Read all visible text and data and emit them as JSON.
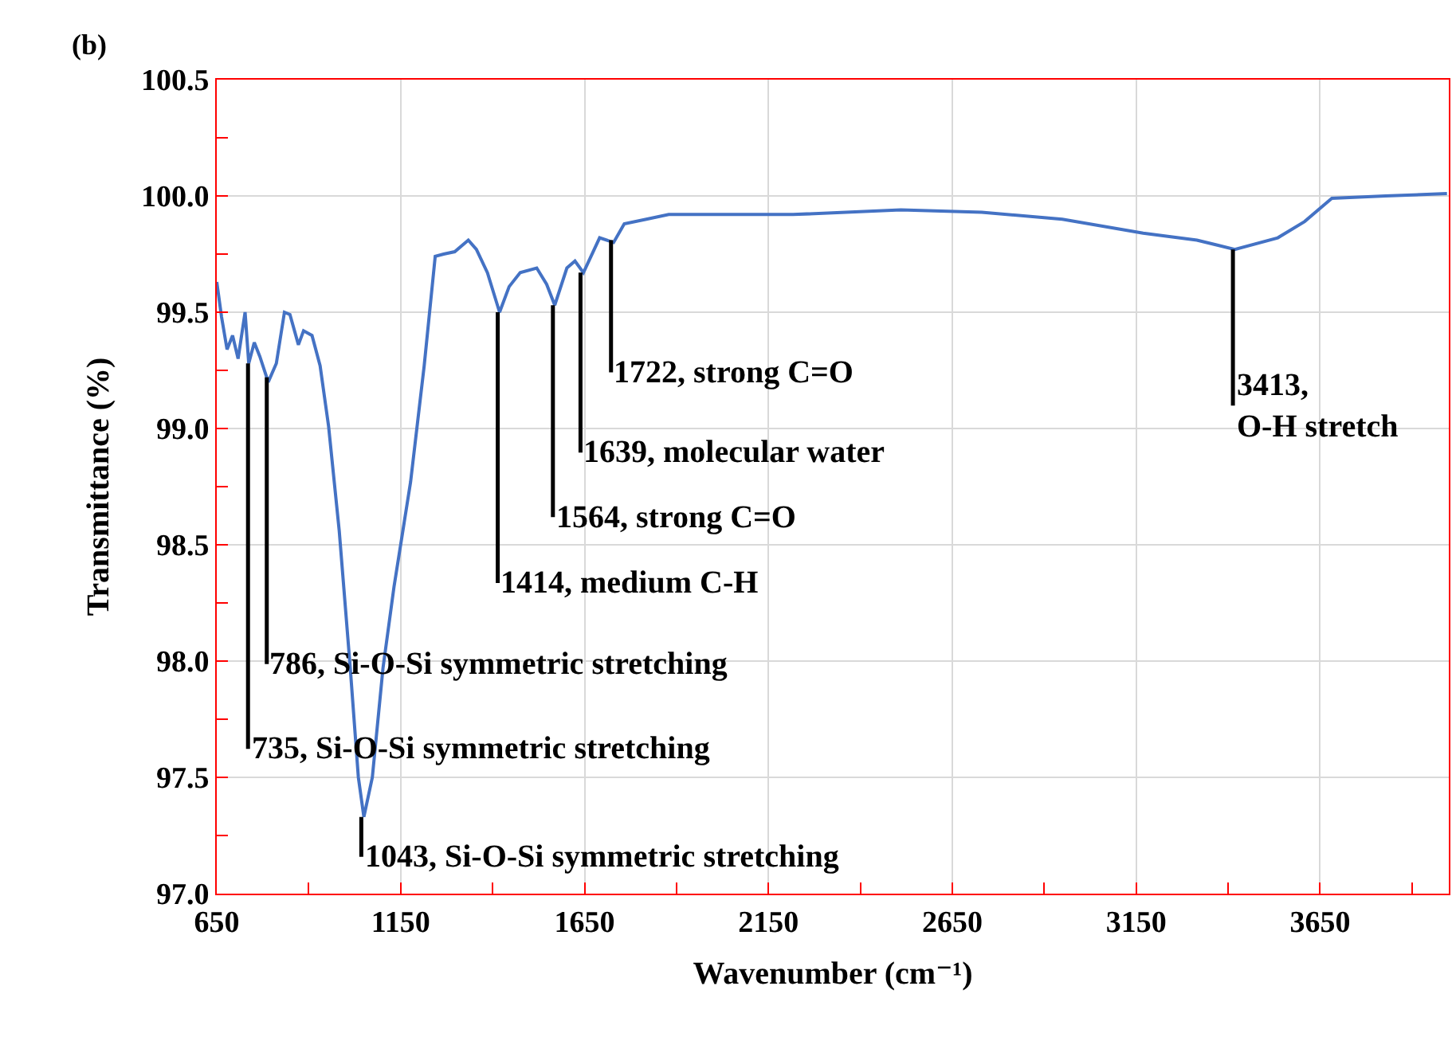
{
  "chart_data": {
    "type": "line",
    "xlabel": "Wavenumber (cm⁻¹)",
    "ylabel": "Transmittance (%)",
    "xlim": [
      650,
      4000
    ],
    "ylim": [
      97.0,
      100.5
    ],
    "xticks": [
      650,
      {
        "value": 900,
        "label": null
      },
      1150,
      {
        "value": 1400,
        "label": null
      },
      1650,
      {
        "value": 1900,
        "label": null
      },
      2150,
      {
        "value": 2400,
        "label": null
      },
      2650,
      {
        "value": 2900,
        "label": null
      },
      3150,
      {
        "value": 3400,
        "label": null
      },
      3650,
      {
        "value": 3900,
        "label": null
      }
    ],
    "yticks": [
      {
        "value": 97.0,
        "label": "97.0"
      },
      {
        "value": 97.25,
        "label": null
      },
      {
        "value": 97.5,
        "label": "97.5"
      },
      {
        "value": 97.75,
        "label": null
      },
      {
        "value": 98.0,
        "label": "98.0"
      },
      {
        "value": 98.25,
        "label": null
      },
      {
        "value": 98.5,
        "label": "98.5"
      },
      {
        "value": 98.75,
        "label": null
      },
      {
        "value": 99.0,
        "label": "99.0"
      },
      {
        "value": 99.25,
        "label": null
      },
      {
        "value": 99.5,
        "label": "99.5"
      },
      {
        "value": 99.75,
        "label": null
      },
      {
        "value": 100.0,
        "label": "100.0"
      },
      {
        "value": 100.25,
        "label": null
      },
      {
        "value": 100.5,
        "label": "100.5"
      }
    ],
    "grid": true,
    "marker": "none",
    "line_style": "solid",
    "series": [
      {
        "color": "#4472c4",
        "x": [
          650,
          663,
          678,
          693,
          708,
          727,
          737,
          752,
          767,
          790,
          812,
          834,
          849,
          872,
          886,
          909,
          931,
          954,
          983,
          1013,
          1035,
          1050,
          1073,
          1102,
          1132,
          1177,
          1214,
          1244,
          1267,
          1297,
          1334,
          1356,
          1386,
          1419,
          1445,
          1475,
          1520,
          1547,
          1569,
          1602,
          1624,
          1647,
          1691,
          1729,
          1758,
          1818,
          1879,
          1925,
          2217,
          2510,
          2730,
          2949,
          3169,
          3315,
          3418,
          3535,
          3608,
          3682,
          3828,
          3995
        ],
        "values": [
          99.63,
          99.48,
          99.34,
          99.4,
          99.3,
          99.5,
          99.28,
          99.37,
          99.31,
          99.2,
          99.28,
          99.5,
          99.49,
          99.36,
          99.42,
          99.4,
          99.27,
          99.01,
          98.56,
          97.97,
          97.5,
          97.33,
          97.5,
          97.97,
          98.32,
          98.77,
          99.27,
          99.74,
          99.75,
          99.76,
          99.81,
          99.77,
          99.67,
          99.5,
          99.61,
          99.67,
          99.69,
          99.62,
          99.53,
          99.69,
          99.72,
          99.67,
          99.82,
          99.8,
          99.88,
          99.9,
          99.92,
          99.92,
          99.92,
          99.94,
          99.93,
          99.9,
          99.84,
          99.81,
          99.77,
          99.82,
          99.89,
          99.99,
          100.0,
          100.01
        ]
      }
    ],
    "annotations": [
      "(b)",
      {
        "text": "735, Si-O-Si symmetric stretching",
        "x": 735,
        "y": 99.28
      },
      {
        "text": "786, Si-O-Si symmetric stretching",
        "x": 786,
        "y": 99.22
      },
      {
        "text": "1043, Si-O-Si symmetric stretching",
        "x": 1043,
        "y": 97.33
      },
      {
        "text": "1414, medium C-H",
        "x": 1414,
        "y": 99.5
      },
      {
        "text": "1564, strong C=O",
        "x": 1564,
        "y": 99.53
      },
      {
        "text": "1639, molecular water",
        "x": 1639,
        "y": 99.67
      },
      {
        "text": "1722, strong C=O",
        "x": 1722,
        "y": 99.81
      },
      {
        "text": "3413,\nO-H stretch",
        "x": 3413,
        "y": 99.77
      }
    ]
  }
}
